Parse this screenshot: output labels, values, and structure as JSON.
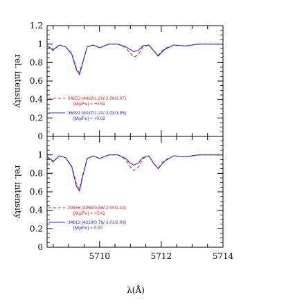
{
  "chart_data": {
    "type": "line",
    "xlabel": "λ(Å)",
    "xlim": [
      5708.3,
      5714
    ],
    "x_ticks": [
      "5710",
      "5712",
      "5714"
    ],
    "colors": {
      "red": "#e8262a",
      "blue": "#2b2bd6"
    },
    "panels": [
      {
        "ylabel": "rel. intensity",
        "ylim": [
          0,
          1.2
        ],
        "y_ticks": [
          "0",
          "0.2",
          "0.4",
          "0.6",
          "0.8",
          "1",
          "1.2"
        ],
        "series": [
          {
            "name": "24252 (4432/1.20/-2.06/1.97)",
            "sub": "[Mg/Fe] = +0.54",
            "style": "dashed",
            "color": "red",
            "x": [
              5708.3,
              5708.5,
              5708.7,
              5708.9,
              5709.1,
              5709.25,
              5709.35,
              5709.45,
              5709.6,
              5709.8,
              5710.0,
              5710.3,
              5710.6,
              5710.85,
              5711.0,
              5711.1,
              5711.25,
              5711.4,
              5711.6,
              5711.75,
              5711.9,
              5712.1,
              5712.4,
              5712.8,
              5713.2,
              5713.6,
              5714.0
            ],
            "y": [
              0.98,
              0.93,
              0.99,
              0.97,
              0.9,
              0.74,
              0.69,
              0.8,
              0.97,
              0.99,
              0.96,
              1.0,
              1.0,
              0.96,
              0.9,
              0.86,
              0.88,
              0.97,
              0.99,
              0.93,
              0.88,
              0.95,
              0.99,
              0.98,
              1.0,
              1.0,
              1.0
            ]
          },
          {
            "name": "36391 (4437/1.22/-2.03/1.85)",
            "sub": "[Mg/Fe] = +0.02",
            "style": "solid",
            "color": "blue",
            "x": [
              5708.3,
              5708.5,
              5708.7,
              5708.9,
              5709.1,
              5709.25,
              5709.35,
              5709.45,
              5709.6,
              5709.8,
              5710.0,
              5710.3,
              5710.6,
              5710.85,
              5711.0,
              5711.1,
              5711.25,
              5711.4,
              5711.6,
              5711.75,
              5711.9,
              5712.1,
              5712.4,
              5712.8,
              5713.2,
              5713.6,
              5714.0
            ],
            "y": [
              0.98,
              0.94,
              0.99,
              0.97,
              0.89,
              0.72,
              0.67,
              0.79,
              0.97,
              0.99,
              0.96,
              1.0,
              1.0,
              0.97,
              0.94,
              0.92,
              0.93,
              0.98,
              0.99,
              0.93,
              0.87,
              0.94,
              0.99,
              0.98,
              1.0,
              1.0,
              1.0
            ]
          }
        ]
      },
      {
        "ylabel": "rel. intensity",
        "ylim": [
          0,
          1.2
        ],
        "y_ticks": [
          "0",
          "0.2",
          "0.4",
          "0.6",
          "0.8",
          "1"
        ],
        "series": [
          {
            "name": "29466 (4268/0.86/-2.00/1.18)",
            "sub": "[Mg/Fe] = +0.43",
            "style": "dashed",
            "color": "red",
            "x": [
              5708.3,
              5708.5,
              5708.7,
              5708.9,
              5709.1,
              5709.25,
              5709.35,
              5709.45,
              5709.6,
              5709.8,
              5710.0,
              5710.3,
              5710.6,
              5710.85,
              5711.0,
              5711.1,
              5711.25,
              5711.4,
              5711.6,
              5711.75,
              5711.9,
              5712.1,
              5712.4,
              5712.8,
              5713.2,
              5713.6,
              5714.0
            ],
            "y": [
              0.98,
              0.92,
              0.99,
              0.97,
              0.88,
              0.69,
              0.63,
              0.78,
              0.96,
              0.99,
              0.96,
              1.0,
              1.0,
              0.95,
              0.87,
              0.83,
              0.86,
              0.96,
              0.99,
              0.91,
              0.86,
              0.94,
              0.99,
              0.98,
              1.0,
              1.0,
              1.0
            ]
          },
          {
            "name": "34613 (4219/0.76/-2.01/2.09)",
            "sub": "[Mg/Fe] = 0.00",
            "style": "solid",
            "color": "blue",
            "x": [
              5708.3,
              5708.5,
              5708.7,
              5708.9,
              5709.1,
              5709.25,
              5709.35,
              5709.45,
              5709.6,
              5709.8,
              5710.0,
              5710.3,
              5710.6,
              5710.85,
              5711.0,
              5711.1,
              5711.25,
              5711.4,
              5711.6,
              5711.75,
              5711.9,
              5712.1,
              5712.4,
              5712.8,
              5713.2,
              5713.6,
              5714.0
            ],
            "y": [
              0.98,
              0.93,
              0.99,
              0.97,
              0.87,
              0.66,
              0.61,
              0.76,
              0.96,
              0.99,
              0.96,
              1.0,
              1.0,
              0.96,
              0.91,
              0.89,
              0.91,
              0.97,
              0.99,
              0.91,
              0.85,
              0.93,
              0.99,
              0.98,
              1.0,
              1.0,
              1.0
            ]
          }
        ]
      }
    ]
  }
}
